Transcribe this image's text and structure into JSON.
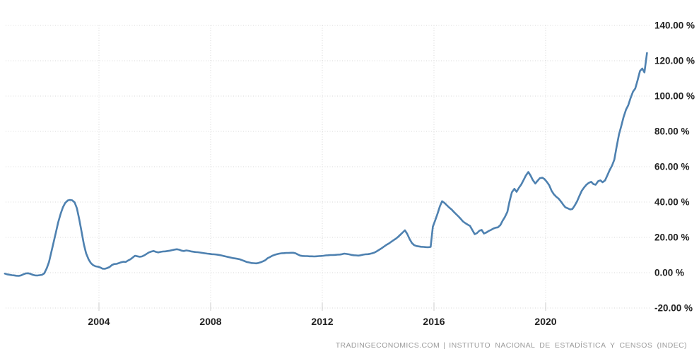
{
  "page": {
    "background": "#ffffff"
  },
  "attribution": {
    "brand": "TRADINGECONOMICS.COM",
    "separator": "|",
    "source": "INSTITUTO NACIONAL DE ESTADÍSTICA Y CENSOS (INDEC)"
  },
  "chart_data": {
    "type": "line",
    "title": "",
    "grid": true,
    "grid_color": "#dadada",
    "tick_color": "#cccccc",
    "label_color": "#222222",
    "x_axis": {
      "tick_years": [
        2004,
        2008,
        2012,
        2016,
        2020
      ],
      "tick_labels": [
        "2004",
        "2008",
        "2012",
        "2016",
        "2020"
      ],
      "range": [
        2000.6,
        2023.8
      ]
    },
    "y_axis": {
      "side": "right",
      "unit": "%",
      "min": -20,
      "max": 140,
      "step": 20,
      "values": [
        140,
        120,
        100,
        80,
        60,
        40,
        20,
        0,
        -20
      ],
      "labels": [
        "140.00 %",
        "120.00 %",
        "100.00 %",
        "80.00 %",
        "60.00 %",
        "40.00 %",
        "20.00 %",
        "0.00 %",
        "-20.00 %"
      ]
    },
    "series": [
      {
        "name": "inflation-rate-yoy-percent",
        "color": "#4e81b0",
        "points": [
          [
            2000.63,
            -0.5
          ],
          [
            2000.71,
            -0.9
          ],
          [
            2000.79,
            -1.1
          ],
          [
            2000.88,
            -1.4
          ],
          [
            2000.96,
            -1.5
          ],
          [
            2001.04,
            -1.7
          ],
          [
            2001.13,
            -1.8
          ],
          [
            2001.21,
            -1.5
          ],
          [
            2001.29,
            -0.9
          ],
          [
            2001.38,
            -0.4
          ],
          [
            2001.46,
            -0.3
          ],
          [
            2001.54,
            -0.6
          ],
          [
            2001.63,
            -1.2
          ],
          [
            2001.71,
            -1.5
          ],
          [
            2001.79,
            -1.6
          ],
          [
            2001.88,
            -1.4
          ],
          [
            2001.96,
            -1.2
          ],
          [
            2002.04,
            -0.4
          ],
          [
            2002.13,
            2.5
          ],
          [
            2002.21,
            6.0
          ],
          [
            2002.29,
            11.5
          ],
          [
            2002.38,
            17.5
          ],
          [
            2002.46,
            23.0
          ],
          [
            2002.54,
            28.5
          ],
          [
            2002.63,
            33.5
          ],
          [
            2002.71,
            37.0
          ],
          [
            2002.79,
            39.5
          ],
          [
            2002.88,
            40.9
          ],
          [
            2002.96,
            41.2
          ],
          [
            2003.04,
            41.0
          ],
          [
            2003.13,
            39.8
          ],
          [
            2003.21,
            36.5
          ],
          [
            2003.29,
            30.5
          ],
          [
            2003.38,
            23.0
          ],
          [
            2003.46,
            16.0
          ],
          [
            2003.54,
            11.0
          ],
          [
            2003.63,
            7.5
          ],
          [
            2003.71,
            5.5
          ],
          [
            2003.79,
            4.3
          ],
          [
            2003.88,
            3.6
          ],
          [
            2003.96,
            3.4
          ],
          [
            2004.04,
            3.0
          ],
          [
            2004.13,
            2.3
          ],
          [
            2004.21,
            2.2
          ],
          [
            2004.29,
            2.6
          ],
          [
            2004.38,
            3.2
          ],
          [
            2004.46,
            4.3
          ],
          [
            2004.54,
            4.9
          ],
          [
            2004.63,
            5.0
          ],
          [
            2004.71,
            5.4
          ],
          [
            2004.79,
            5.9
          ],
          [
            2004.88,
            6.2
          ],
          [
            2004.96,
            6.1
          ],
          [
            2005.04,
            6.9
          ],
          [
            2005.13,
            7.6
          ],
          [
            2005.21,
            8.6
          ],
          [
            2005.29,
            9.6
          ],
          [
            2005.38,
            9.3
          ],
          [
            2005.46,
            9.0
          ],
          [
            2005.54,
            9.2
          ],
          [
            2005.63,
            9.9
          ],
          [
            2005.71,
            10.7
          ],
          [
            2005.79,
            11.5
          ],
          [
            2005.88,
            12.0
          ],
          [
            2005.96,
            12.3
          ],
          [
            2006.04,
            11.8
          ],
          [
            2006.13,
            11.5
          ],
          [
            2006.21,
            11.8
          ],
          [
            2006.29,
            12.0
          ],
          [
            2006.38,
            12.1
          ],
          [
            2006.46,
            12.3
          ],
          [
            2006.54,
            12.5
          ],
          [
            2006.63,
            12.8
          ],
          [
            2006.71,
            13.1
          ],
          [
            2006.79,
            13.3
          ],
          [
            2006.88,
            13.0
          ],
          [
            2006.96,
            12.5
          ],
          [
            2007.04,
            12.3
          ],
          [
            2007.13,
            12.6
          ],
          [
            2007.21,
            12.4
          ],
          [
            2007.29,
            12.1
          ],
          [
            2007.38,
            11.9
          ],
          [
            2007.46,
            11.7
          ],
          [
            2007.54,
            11.6
          ],
          [
            2007.63,
            11.4
          ],
          [
            2007.71,
            11.2
          ],
          [
            2007.79,
            11.0
          ],
          [
            2007.88,
            10.8
          ],
          [
            2007.96,
            10.7
          ],
          [
            2008.04,
            10.5
          ],
          [
            2008.13,
            10.4
          ],
          [
            2008.21,
            10.3
          ],
          [
            2008.29,
            10.1
          ],
          [
            2008.38,
            9.8
          ],
          [
            2008.46,
            9.5
          ],
          [
            2008.54,
            9.2
          ],
          [
            2008.63,
            8.9
          ],
          [
            2008.71,
            8.6
          ],
          [
            2008.79,
            8.3
          ],
          [
            2008.88,
            8.1
          ],
          [
            2008.96,
            7.9
          ],
          [
            2009.04,
            7.6
          ],
          [
            2009.13,
            7.1
          ],
          [
            2009.21,
            6.6
          ],
          [
            2009.29,
            6.1
          ],
          [
            2009.38,
            5.8
          ],
          [
            2009.46,
            5.5
          ],
          [
            2009.54,
            5.4
          ],
          [
            2009.63,
            5.3
          ],
          [
            2009.71,
            5.5
          ],
          [
            2009.79,
            5.9
          ],
          [
            2009.88,
            6.5
          ],
          [
            2009.96,
            7.1
          ],
          [
            2010.04,
            8.2
          ],
          [
            2010.13,
            8.9
          ],
          [
            2010.21,
            9.6
          ],
          [
            2010.29,
            10.1
          ],
          [
            2010.38,
            10.5
          ],
          [
            2010.46,
            10.8
          ],
          [
            2010.54,
            11.0
          ],
          [
            2010.63,
            11.1
          ],
          [
            2010.71,
            11.2
          ],
          [
            2010.79,
            11.2
          ],
          [
            2010.88,
            11.3
          ],
          [
            2010.96,
            11.3
          ],
          [
            2011.04,
            11.0
          ],
          [
            2011.13,
            10.3
          ],
          [
            2011.21,
            9.7
          ],
          [
            2011.29,
            9.5
          ],
          [
            2011.38,
            9.4
          ],
          [
            2011.46,
            9.4
          ],
          [
            2011.54,
            9.3
          ],
          [
            2011.63,
            9.3
          ],
          [
            2011.71,
            9.2
          ],
          [
            2011.79,
            9.3
          ],
          [
            2011.88,
            9.4
          ],
          [
            2011.96,
            9.5
          ],
          [
            2012.04,
            9.6
          ],
          [
            2012.13,
            9.8
          ],
          [
            2012.21,
            9.9
          ],
          [
            2012.29,
            10.0
          ],
          [
            2012.38,
            10.0
          ],
          [
            2012.46,
            10.1
          ],
          [
            2012.54,
            10.2
          ],
          [
            2012.63,
            10.3
          ],
          [
            2012.71,
            10.5
          ],
          [
            2012.79,
            10.8
          ],
          [
            2012.88,
            10.6
          ],
          [
            2012.96,
            10.4
          ],
          [
            2013.04,
            10.1
          ],
          [
            2013.13,
            9.9
          ],
          [
            2013.21,
            9.8
          ],
          [
            2013.29,
            9.7
          ],
          [
            2013.38,
            9.9
          ],
          [
            2013.46,
            10.2
          ],
          [
            2013.54,
            10.4
          ],
          [
            2013.63,
            10.5
          ],
          [
            2013.71,
            10.7
          ],
          [
            2013.79,
            11.0
          ],
          [
            2013.88,
            11.5
          ],
          [
            2013.96,
            12.2
          ],
          [
            2014.04,
            13.0
          ],
          [
            2014.13,
            13.9
          ],
          [
            2014.21,
            14.8
          ],
          [
            2014.29,
            15.7
          ],
          [
            2014.38,
            16.5
          ],
          [
            2014.46,
            17.4
          ],
          [
            2014.54,
            18.3
          ],
          [
            2014.63,
            19.2
          ],
          [
            2014.71,
            20.2
          ],
          [
            2014.79,
            21.4
          ],
          [
            2014.88,
            22.8
          ],
          [
            2014.96,
            24.0
          ],
          [
            2015.04,
            22.0
          ],
          [
            2015.13,
            19.0
          ],
          [
            2015.21,
            16.8
          ],
          [
            2015.29,
            15.6
          ],
          [
            2015.38,
            15.1
          ],
          [
            2015.46,
            14.9
          ],
          [
            2015.54,
            14.7
          ],
          [
            2015.63,
            14.6
          ],
          [
            2015.71,
            14.5
          ],
          [
            2015.79,
            14.4
          ],
          [
            2015.88,
            14.6
          ],
          [
            2015.96,
            26.0
          ],
          [
            2016.04,
            29.5
          ],
          [
            2016.13,
            33.5
          ],
          [
            2016.21,
            37.5
          ],
          [
            2016.29,
            40.5
          ],
          [
            2016.38,
            39.5
          ],
          [
            2016.46,
            38.2
          ],
          [
            2016.54,
            37.0
          ],
          [
            2016.63,
            35.8
          ],
          [
            2016.71,
            34.5
          ],
          [
            2016.79,
            33.2
          ],
          [
            2016.88,
            31.8
          ],
          [
            2016.96,
            30.5
          ],
          [
            2017.04,
            29.0
          ],
          [
            2017.13,
            28.0
          ],
          [
            2017.21,
            27.2
          ],
          [
            2017.29,
            26.5
          ],
          [
            2017.38,
            24.0
          ],
          [
            2017.46,
            21.8
          ],
          [
            2017.54,
            22.4
          ],
          [
            2017.63,
            23.8
          ],
          [
            2017.71,
            24.2
          ],
          [
            2017.79,
            22.2
          ],
          [
            2017.88,
            22.8
          ],
          [
            2017.96,
            23.6
          ],
          [
            2018.04,
            24.2
          ],
          [
            2018.13,
            25.0
          ],
          [
            2018.21,
            25.5
          ],
          [
            2018.29,
            25.7
          ],
          [
            2018.38,
            27.0
          ],
          [
            2018.46,
            29.5
          ],
          [
            2018.54,
            31.5
          ],
          [
            2018.63,
            34.5
          ],
          [
            2018.71,
            40.5
          ],
          [
            2018.79,
            45.5
          ],
          [
            2018.88,
            47.5
          ],
          [
            2018.96,
            45.8
          ],
          [
            2019.04,
            48.0
          ],
          [
            2019.13,
            50.0
          ],
          [
            2019.21,
            52.5
          ],
          [
            2019.29,
            55.0
          ],
          [
            2019.38,
            57.0
          ],
          [
            2019.46,
            55.0
          ],
          [
            2019.54,
            52.5
          ],
          [
            2019.63,
            50.5
          ],
          [
            2019.71,
            52.0
          ],
          [
            2019.79,
            53.5
          ],
          [
            2019.88,
            53.8
          ],
          [
            2019.96,
            53.0
          ],
          [
            2020.04,
            51.5
          ],
          [
            2020.13,
            49.5
          ],
          [
            2020.21,
            46.5
          ],
          [
            2020.29,
            44.5
          ],
          [
            2020.38,
            43.0
          ],
          [
            2020.46,
            42.0
          ],
          [
            2020.54,
            40.5
          ],
          [
            2020.63,
            38.5
          ],
          [
            2020.71,
            37.0
          ],
          [
            2020.79,
            36.5
          ],
          [
            2020.88,
            35.8
          ],
          [
            2020.96,
            36.1
          ],
          [
            2021.04,
            38.0
          ],
          [
            2021.13,
            40.5
          ],
          [
            2021.21,
            43.5
          ],
          [
            2021.29,
            46.3
          ],
          [
            2021.38,
            48.3
          ],
          [
            2021.46,
            49.8
          ],
          [
            2021.54,
            50.8
          ],
          [
            2021.63,
            51.5
          ],
          [
            2021.71,
            50.2
          ],
          [
            2021.79,
            49.8
          ],
          [
            2021.88,
            51.8
          ],
          [
            2021.96,
            52.3
          ],
          [
            2022.04,
            51.2
          ],
          [
            2022.13,
            52.3
          ],
          [
            2022.21,
            55.1
          ],
          [
            2022.29,
            58.0
          ],
          [
            2022.38,
            60.7
          ],
          [
            2022.46,
            64.0
          ],
          [
            2022.54,
            71.0
          ],
          [
            2022.63,
            78.5
          ],
          [
            2022.71,
            83.0
          ],
          [
            2022.79,
            88.0
          ],
          [
            2022.88,
            92.4
          ],
          [
            2022.96,
            94.8
          ],
          [
            2023.04,
            98.8
          ],
          [
            2023.13,
            102.5
          ],
          [
            2023.21,
            104.3
          ],
          [
            2023.29,
            108.8
          ],
          [
            2023.38,
            114.2
          ],
          [
            2023.46,
            115.6
          ],
          [
            2023.54,
            113.4
          ],
          [
            2023.63,
            124.4
          ]
        ]
      }
    ]
  }
}
